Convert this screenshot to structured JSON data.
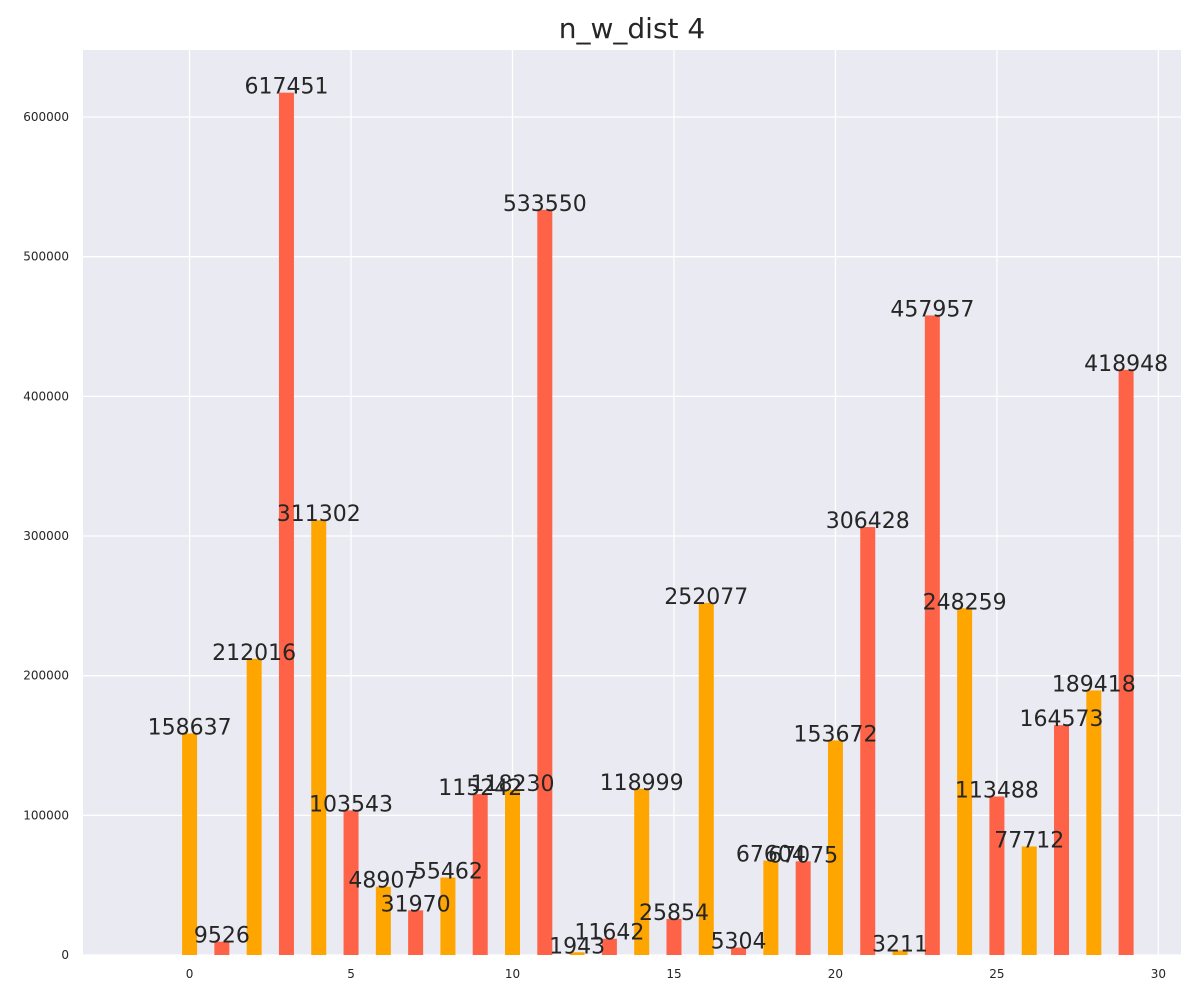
{
  "chart_data": {
    "type": "bar",
    "title": "n_w_dist 4",
    "xlabel": "",
    "ylabel": "",
    "x": [
      0,
      1,
      2,
      3,
      4,
      5,
      6,
      7,
      8,
      9,
      10,
      11,
      12,
      13,
      14,
      15,
      16,
      17,
      18,
      19,
      20,
      21,
      22,
      23,
      24,
      25,
      26,
      27,
      28,
      29
    ],
    "values": [
      158637,
      9526,
      212016,
      617451,
      311302,
      103543,
      48907,
      31970,
      55462,
      115242,
      118230,
      533550,
      1943,
      11642,
      118999,
      25854,
      252077,
      5304,
      67604,
      67075,
      153672,
      306428,
      3211,
      457957,
      248259,
      113488,
      77712,
      164573,
      189418,
      418948
    ],
    "xlim": [
      -3.3,
      30.7
    ],
    "ylim": [
      0,
      648000
    ],
    "x_ticks": [
      0,
      5,
      10,
      15,
      20,
      25,
      30
    ],
    "y_ticks": [
      0,
      100000,
      200000,
      300000,
      400000,
      500000,
      600000
    ],
    "grid": true,
    "colors": {
      "even": "#FFA500",
      "odd": "#FF6347",
      "background": "#EAEAF2",
      "grid": "#FFFFFF"
    }
  }
}
